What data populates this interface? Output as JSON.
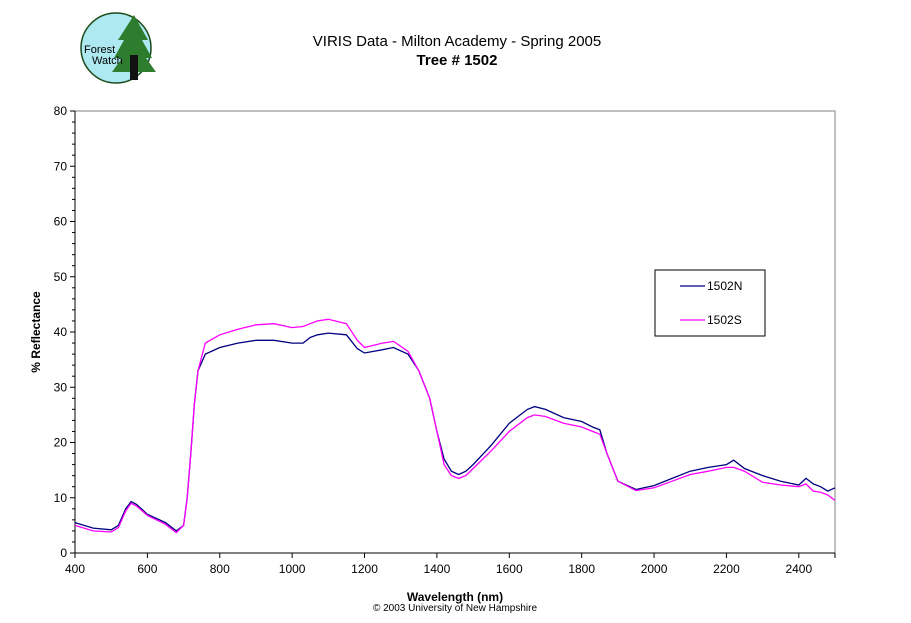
{
  "logo": {
    "text_line1": "Forest",
    "text_line2": "Watch"
  },
  "footer": "© 2003 University of New Hampshire",
  "chart_data": {
    "type": "line",
    "title": "VIRIS Data - Milton Academy - Spring 2005",
    "subtitle": "Tree # 1502",
    "xlabel": "Wavelength (nm)",
    "ylabel": "% Reflectance",
    "xlim": [
      400,
      2500
    ],
    "ylim": [
      0,
      80
    ],
    "xticks": [
      400,
      600,
      800,
      1000,
      1200,
      1400,
      1600,
      1800,
      2000,
      2200,
      2400
    ],
    "yticks": [
      0,
      10,
      20,
      30,
      40,
      50,
      60,
      70,
      80
    ],
    "grid": false,
    "legend_placement": "right",
    "x": [
      400,
      450,
      500,
      520,
      540,
      555,
      570,
      600,
      650,
      680,
      700,
      710,
      720,
      730,
      740,
      760,
      800,
      850,
      900,
      950,
      1000,
      1030,
      1050,
      1070,
      1100,
      1150,
      1180,
      1200,
      1250,
      1280,
      1320,
      1350,
      1380,
      1400,
      1420,
      1440,
      1460,
      1480,
      1500,
      1550,
      1600,
      1650,
      1670,
      1700,
      1750,
      1800,
      1830,
      1850,
      1870,
      1900,
      1950,
      2000,
      2050,
      2100,
      2150,
      2200,
      2220,
      2250,
      2300,
      2350,
      2400,
      2420,
      2440,
      2460,
      2480,
      2500
    ],
    "series": [
      {
        "name": "1502N",
        "color": "#000080",
        "values": [
          5.5,
          4.5,
          4.2,
          5,
          8,
          9.3,
          8.8,
          7,
          5.5,
          4.0,
          5,
          10,
          18,
          27,
          33,
          36,
          37.2,
          38,
          38.5,
          38.5,
          38,
          38,
          39,
          39.5,
          39.8,
          39.5,
          37,
          36.2,
          36.8,
          37.2,
          36,
          33,
          28,
          22,
          17,
          14.8,
          14.2,
          14.8,
          16,
          19.5,
          23.5,
          26,
          26.5,
          26,
          24.5,
          23.8,
          22.8,
          22.3,
          18,
          13,
          11.5,
          12.2,
          13.5,
          14.8,
          15.5,
          16,
          16.8,
          15.3,
          14,
          13,
          12.3,
          13.5,
          12.5,
          12,
          11.2,
          11.8
        ]
      },
      {
        "name": "1502S",
        "color": "#FF00FF",
        "values": [
          5,
          4,
          3.8,
          4.6,
          7.6,
          9,
          8.5,
          6.8,
          5.2,
          3.7,
          5,
          10,
          18,
          27,
          33,
          38,
          39.5,
          40.5,
          41.3,
          41.5,
          40.8,
          41,
          41.5,
          42,
          42.3,
          41.5,
          38.5,
          37.2,
          38,
          38.3,
          36.5,
          33,
          28,
          22,
          16,
          14,
          13.5,
          14,
          15.3,
          18.5,
          22,
          24.5,
          25,
          24.7,
          23.5,
          22.8,
          22,
          21.5,
          18,
          13,
          11.3,
          11.8,
          13,
          14.2,
          14.8,
          15.5,
          15.5,
          14.8,
          12.8,
          12.3,
          12,
          12.5,
          11.2,
          11,
          10.5,
          9.5
        ]
      }
    ]
  }
}
